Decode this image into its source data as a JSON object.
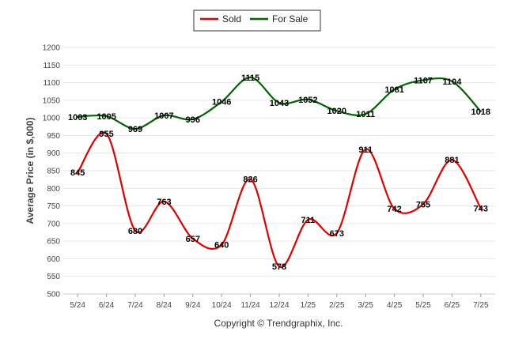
{
  "chart_data": {
    "type": "line",
    "categories": [
      "5/24",
      "6/24",
      "7/24",
      "8/24",
      "9/24",
      "10/24",
      "11/24",
      "12/24",
      "1/25",
      "2/25",
      "3/25",
      "4/25",
      "5/25",
      "6/25",
      "7/25"
    ],
    "series": [
      {
        "name": "Sold",
        "color": "#e00000",
        "values": [
          845,
          955,
          680,
          763,
          657,
          640,
          826,
          578,
          711,
          673,
          911,
          742,
          755,
          881,
          743
        ]
      },
      {
        "name": "For Sale",
        "color": "#006400",
        "values": [
          1003,
          1005,
          969,
          1007,
          996,
          1046,
          1115,
          1043,
          1052,
          1020,
          1011,
          1081,
          1107,
          1104,
          1018
        ]
      }
    ],
    "ylabel": "Average Price (in $,000)",
    "yticks": [
      500,
      550,
      600,
      650,
      700,
      750,
      800,
      850,
      900,
      950,
      1000,
      1050,
      1100,
      1150,
      1200
    ],
    "ylim": [
      500,
      1200
    ],
    "grid": true,
    "legend": "top-center"
  },
  "footer": "Copyright © Trendgraphix, Inc."
}
